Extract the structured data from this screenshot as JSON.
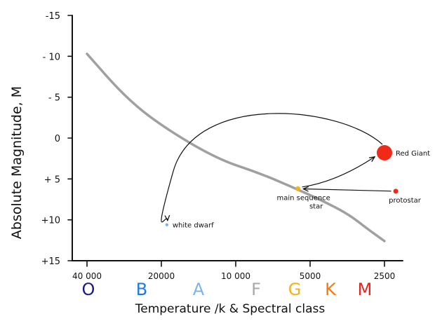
{
  "chart_data": {
    "type": "scatter",
    "title": "",
    "xlabel": "Temperature /k & Spectral class",
    "ylabel": "Absolute Magnitude, M",
    "x_ticks": [
      "40 000",
      "20000",
      "10 000",
      "5000",
      "2500"
    ],
    "y_ticks": [
      {
        "label": "-15",
        "value": -15
      },
      {
        "label": "- 10",
        "value": -10
      },
      {
        "label": "- 5",
        "value": -5
      },
      {
        "label": "0",
        "value": 0
      },
      {
        "label": "+ 5",
        "value": 5
      },
      {
        "label": "+10",
        "value": 10
      },
      {
        "label": "+15",
        "value": 15
      }
    ],
    "ylim": [
      -15,
      15
    ],
    "y_inverted": true,
    "spectral_classes": [
      {
        "label": "O",
        "color": "#1a1a8c"
      },
      {
        "label": "B",
        "color": "#1f7ae0"
      },
      {
        "label": "A",
        "color": "#7fb3e8"
      },
      {
        "label": "F",
        "color": "#a9a9a9"
      },
      {
        "label": "G",
        "color": "#f4b21a"
      },
      {
        "label": "K",
        "color": "#f07a1a"
      },
      {
        "label": "M",
        "color": "#e8231e"
      }
    ],
    "main_sequence": {
      "color": "#a0a0a0",
      "points": [
        {
          "temp": 40000,
          "mag": -10.3
        },
        {
          "temp": 28000,
          "mag": -5.0
        },
        {
          "temp": 20000,
          "mag": -1.5
        },
        {
          "temp": 12000,
          "mag": 2.5
        },
        {
          "temp": 8000,
          "mag": 4.3
        },
        {
          "temp": 6000,
          "mag": 5.9
        },
        {
          "temp": 4500,
          "mag": 7.6
        },
        {
          "temp": 3500,
          "mag": 9.3
        },
        {
          "temp": 2900,
          "mag": 11.2
        },
        {
          "temp": 2500,
          "mag": 12.6
        }
      ]
    },
    "stars": [
      {
        "id": "red-giant",
        "label": "Red Giant",
        "temp": 2500,
        "mag": 1.8,
        "color": "#f02a17",
        "size": "large"
      },
      {
        "id": "main-sequence-star",
        "label": "main sequence\nstar",
        "temp": 5600,
        "mag": 6.2,
        "color": "#f4b21a",
        "size": "small"
      },
      {
        "id": "protostar",
        "label": "protostar",
        "temp": 2250,
        "mag": 6.5,
        "color": "#f02a17",
        "size": "small"
      },
      {
        "id": "white-dwarf",
        "label": "white dwarf",
        "temp": 19000,
        "mag": 10.6,
        "color": "#7fb3e8",
        "size": "tiny"
      }
    ],
    "transitions": [
      {
        "from": "protostar",
        "to": "main-sequence-star",
        "shape": "straight"
      },
      {
        "from": "main-sequence-star",
        "to": "red-giant",
        "shape": "curve"
      },
      {
        "from": "red-giant",
        "to": "white-dwarf",
        "shape": "arc"
      }
    ],
    "grid": false,
    "legend": "none"
  }
}
